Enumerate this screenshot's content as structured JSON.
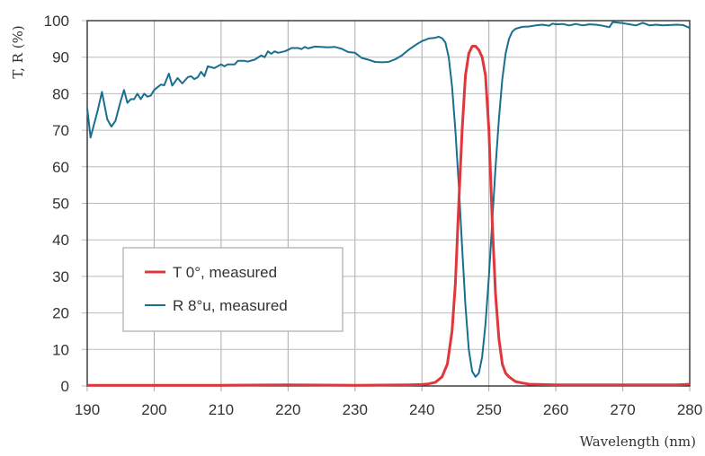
{
  "chart_data": {
    "type": "line",
    "title": "",
    "xlabel": "Wavelength (nm)",
    "ylabel": "T, R (%)",
    "xlim": [
      190,
      280
    ],
    "ylim": [
      0,
      100
    ],
    "xticks": [
      190,
      200,
      210,
      220,
      230,
      240,
      250,
      260,
      270,
      280
    ],
    "yticks": [
      0,
      10,
      20,
      30,
      40,
      50,
      60,
      70,
      80,
      90,
      100
    ],
    "grid": true,
    "legend_position": "lower-left",
    "series": [
      {
        "name": "T 0°, measured",
        "color": "#e0373c",
        "points": [
          [
            190,
            0.2
          ],
          [
            200,
            0.2
          ],
          [
            210,
            0.2
          ],
          [
            220,
            0.3
          ],
          [
            230,
            0.2
          ],
          [
            238,
            0.3
          ],
          [
            240,
            0.4
          ],
          [
            241,
            0.6
          ],
          [
            242,
            1
          ],
          [
            243,
            2.5
          ],
          [
            243.8,
            6
          ],
          [
            244.5,
            15
          ],
          [
            245,
            28
          ],
          [
            245.5,
            50
          ],
          [
            246,
            70
          ],
          [
            246.5,
            85
          ],
          [
            247,
            91
          ],
          [
            247.5,
            93
          ],
          [
            248,
            93
          ],
          [
            248.5,
            92
          ],
          [
            249,
            90
          ],
          [
            249.5,
            85
          ],
          [
            250,
            70
          ],
          [
            250.5,
            45
          ],
          [
            251,
            25
          ],
          [
            251.5,
            13
          ],
          [
            252,
            6
          ],
          [
            252.5,
            3.5
          ],
          [
            253,
            2.5
          ],
          [
            254,
            1.2
          ],
          [
            255,
            0.8
          ],
          [
            256,
            0.5
          ],
          [
            260,
            0.3
          ],
          [
            270,
            0.3
          ],
          [
            278,
            0.3
          ],
          [
            280,
            0.5
          ]
        ]
      },
      {
        "name": "R 8°u, measured",
        "color": "#1a6e8e",
        "points": [
          [
            190,
            76
          ],
          [
            190.5,
            68
          ],
          [
            191.5,
            75
          ],
          [
            192.2,
            80.5
          ],
          [
            193,
            73
          ],
          [
            193.6,
            71
          ],
          [
            194.2,
            72.5
          ],
          [
            195,
            78
          ],
          [
            195.5,
            81
          ],
          [
            196,
            77.5
          ],
          [
            196.5,
            78.5
          ],
          [
            197,
            78.5
          ],
          [
            197.5,
            80
          ],
          [
            198,
            78.5
          ],
          [
            198.5,
            80
          ],
          [
            199,
            79.2
          ],
          [
            199.5,
            79.5
          ],
          [
            200,
            81
          ],
          [
            201,
            82.5
          ],
          [
            201.5,
            82.3
          ],
          [
            202.2,
            85.5
          ],
          [
            202.7,
            82.2
          ],
          [
            203.5,
            84.3
          ],
          [
            204.2,
            82.8
          ],
          [
            205,
            84.5
          ],
          [
            205.5,
            84.8
          ],
          [
            206,
            84
          ],
          [
            206.5,
            84.5
          ],
          [
            207,
            86
          ],
          [
            207.5,
            84.8
          ],
          [
            208,
            87.5
          ],
          [
            209,
            87
          ],
          [
            210,
            88
          ],
          [
            210.5,
            87.5
          ],
          [
            211,
            88
          ],
          [
            212,
            88
          ],
          [
            212.5,
            89
          ],
          [
            213.5,
            89
          ],
          [
            214,
            88.8
          ],
          [
            215,
            89.3
          ],
          [
            216,
            90.5
          ],
          [
            216.5,
            90
          ],
          [
            217,
            91.6
          ],
          [
            217.5,
            90.9
          ],
          [
            218,
            91.6
          ],
          [
            218.5,
            91.2
          ],
          [
            219.5,
            91.6
          ],
          [
            220,
            92
          ],
          [
            220.5,
            92.5
          ],
          [
            221.5,
            92.5
          ],
          [
            222,
            92.2
          ],
          [
            222.5,
            92.8
          ],
          [
            223,
            92.4
          ],
          [
            224,
            92.9
          ],
          [
            226,
            92.7
          ],
          [
            227,
            92.8
          ],
          [
            228,
            92.3
          ],
          [
            229,
            91.4
          ],
          [
            230,
            91.2
          ],
          [
            231,
            89.8
          ],
          [
            232,
            89.3
          ],
          [
            233,
            88.7
          ],
          [
            234,
            88.6
          ],
          [
            235,
            88.7
          ],
          [
            236,
            89.4
          ],
          [
            237,
            90.5
          ],
          [
            238,
            92
          ],
          [
            239,
            93.3
          ],
          [
            240,
            94.4
          ],
          [
            241,
            95.1
          ],
          [
            242,
            95.3
          ],
          [
            242.5,
            95.6
          ],
          [
            243,
            95.2
          ],
          [
            243.5,
            94
          ],
          [
            244,
            90
          ],
          [
            244.5,
            82
          ],
          [
            245,
            70
          ],
          [
            245.5,
            55
          ],
          [
            246,
            38
          ],
          [
            246.5,
            22
          ],
          [
            247,
            10
          ],
          [
            247.5,
            4
          ],
          [
            248,
            2.5
          ],
          [
            248.5,
            3.5
          ],
          [
            249,
            8
          ],
          [
            249.5,
            17
          ],
          [
            250,
            30
          ],
          [
            250.5,
            45
          ],
          [
            251,
            60
          ],
          [
            251.5,
            73
          ],
          [
            252,
            84
          ],
          [
            252.5,
            91
          ],
          [
            253,
            95
          ],
          [
            253.5,
            97
          ],
          [
            254,
            97.8
          ],
          [
            255,
            98.3
          ],
          [
            256,
            98.4
          ],
          [
            257,
            98.7
          ],
          [
            258,
            98.9
          ],
          [
            259,
            98.6
          ],
          [
            259.5,
            99.2
          ],
          [
            260,
            99
          ],
          [
            261,
            99.1
          ],
          [
            262,
            98.7
          ],
          [
            263,
            99.1
          ],
          [
            264,
            98.7
          ],
          [
            265,
            99
          ],
          [
            266,
            98.9
          ],
          [
            267,
            98.6
          ],
          [
            268,
            98.2
          ],
          [
            268.5,
            99.6
          ],
          [
            270,
            99.3
          ],
          [
            271,
            99
          ],
          [
            272,
            98.7
          ],
          [
            273,
            99.4
          ],
          [
            274,
            98.7
          ],
          [
            275,
            98.9
          ],
          [
            276,
            98.7
          ],
          [
            277,
            98.8
          ],
          [
            278,
            98.9
          ],
          [
            279,
            98.8
          ],
          [
            280,
            98
          ]
        ]
      }
    ]
  }
}
